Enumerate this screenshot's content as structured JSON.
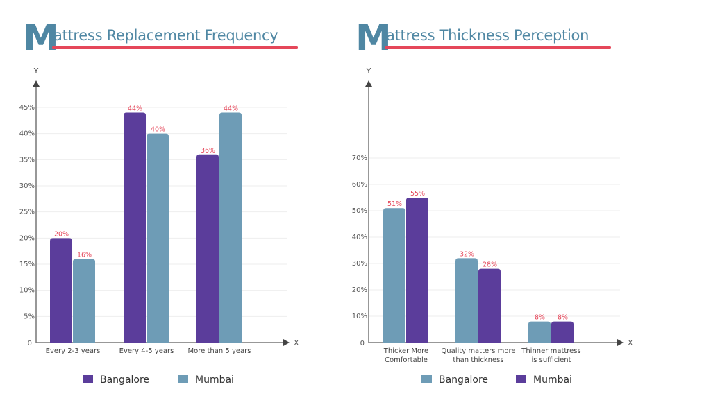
{
  "chart_data": [
    {
      "type": "bar",
      "title": "Mattress Replacement Frequency",
      "title_initial": "M",
      "title_rest": "attress Replacement Frequency",
      "xlabel": "X",
      "ylabel": "Y",
      "categories": [
        "Every 2-3 years",
        "Every 4-5 years",
        "More than 5 years"
      ],
      "series": [
        {
          "name": "Bangalore",
          "color": "#5b3d9b",
          "values": [
            20,
            44,
            36
          ]
        },
        {
          "name": "Mumbai",
          "color": "#6e9cb6",
          "values": [
            16,
            40,
            44
          ]
        }
      ],
      "y_ticks": [
        0,
        5,
        10,
        15,
        20,
        25,
        30,
        35,
        40,
        45
      ],
      "y_tick_labels": [
        "0",
        "5%",
        "10%",
        "15%",
        "20%",
        "25%",
        "30%",
        "35%",
        "40%",
        "45%"
      ],
      "ylim": [
        0,
        45
      ],
      "grid": true,
      "legend_position": "bottom",
      "data_label_suffix": "%"
    },
    {
      "type": "bar",
      "title": "Mattress Thickness Perception",
      "title_initial": "M",
      "title_rest": "attress Thickness Perception",
      "xlabel": "X",
      "ylabel": "Y",
      "categories": [
        "Thicker More|Comfortable",
        "Quality matters more|than thickness",
        "Thinner mattress|is sufficient"
      ],
      "series": [
        {
          "name": "Bangalore",
          "color": "#6e9cb6",
          "values": [
            51,
            32,
            8
          ]
        },
        {
          "name": "Mumbai",
          "color": "#5b3d9b",
          "values": [
            55,
            28,
            8
          ]
        }
      ],
      "y_ticks": [
        0,
        10,
        20,
        30,
        40,
        50,
        60,
        70
      ],
      "y_tick_labels": [
        "0",
        "10%",
        "20%",
        "30%",
        "40%",
        "50%",
        "60%",
        "70%"
      ],
      "ylim": [
        0,
        70
      ],
      "grid": true,
      "legend_position": "bottom",
      "data_label_suffix": "%"
    }
  ],
  "colors": {
    "title": "#4f87a3",
    "title_underline": "#e5475a",
    "data_label": "#e5475a",
    "axis": "#777777",
    "grid": "#eeeeee"
  }
}
